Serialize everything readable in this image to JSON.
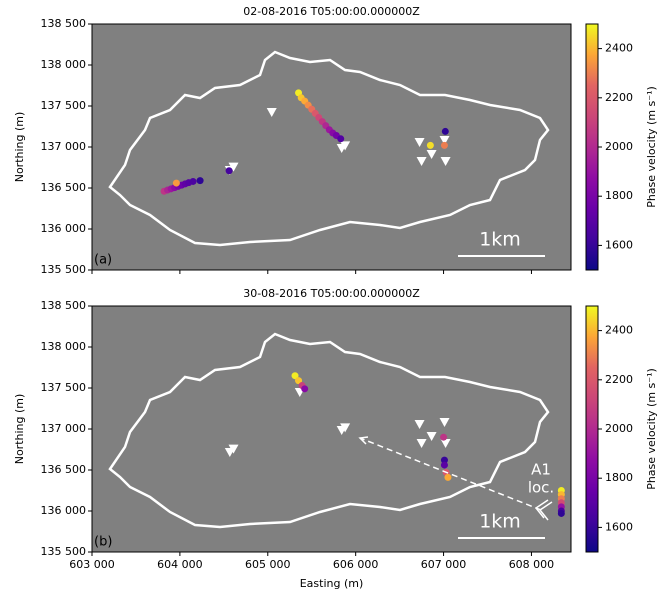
{
  "chart_data": [
    {
      "type": "scatter",
      "title": "02-08-2016 T05:00:00.000000Z",
      "panel_label": "(a)",
      "ylabel": "Northing (m)",
      "background": "#808080",
      "colormap": "plasma",
      "xlim": [
        603000,
        608450
      ],
      "ylim": [
        135500,
        138500
      ],
      "xticks": [
        603000,
        604000,
        605000,
        606000,
        607000,
        608000
      ],
      "xtick_labels": false,
      "yticks": [
        {
          "value": 135500,
          "label": "135 500"
        },
        {
          "value": 136000,
          "label": "136 000"
        },
        {
          "value": 136500,
          "label": "136 500"
        },
        {
          "value": 137000,
          "label": "137 000"
        },
        {
          "value": 137500,
          "label": "137 500"
        },
        {
          "value": 138000,
          "label": "138 000"
        },
        {
          "value": 138500,
          "label": "138 500"
        }
      ],
      "x": [
        603820,
        603860,
        603900,
        603940,
        603980,
        604020,
        604060,
        604100,
        604150,
        604230,
        604560,
        603960,
        605350,
        605380,
        605420,
        605460,
        605500,
        605540,
        605580,
        605620,
        605660,
        605700,
        605740,
        605780,
        605830,
        606850,
        607020,
        607010
      ],
      "y": [
        136460,
        136475,
        136490,
        136505,
        136520,
        136535,
        136550,
        136565,
        136580,
        136590,
        136710,
        136560,
        137660,
        137600,
        137560,
        137510,
        137460,
        137410,
        137360,
        137310,
        137260,
        137210,
        137170,
        137140,
        137100,
        137020,
        137190,
        137020
      ],
      "values": [
        2050,
        1980,
        1920,
        1860,
        1800,
        1760,
        1720,
        1690,
        1660,
        1580,
        1640,
        2350,
        2480,
        2420,
        2380,
        2330,
        2270,
        2200,
        2130,
        2060,
        1990,
        1920,
        1850,
        1780,
        1680,
        2460,
        1580,
        2300
      ],
      "stations": {
        "x": [
          604568,
          604610,
          605045,
          605841,
          605880,
          606727,
          607011,
          606750,
          606864,
          607023
        ],
        "y": [
          136720,
          136760,
          137427,
          136988,
          137020,
          137061,
          137085,
          136829,
          136915,
          136829
        ]
      },
      "clim": [
        1500,
        2500
      ],
      "cticks": [
        1600,
        1800,
        2000,
        2200,
        2400
      ],
      "clabel": "Phase velocity (m s⁻¹)",
      "scalebar_label": "1km"
    },
    {
      "type": "scatter",
      "title": "30-08-2016 T05:00:00.000000Z",
      "panel_label": "(b)",
      "ylabel": "Northing (m)",
      "xlabel": "Easting (m)",
      "background": "#808080",
      "colormap": "plasma",
      "xlim": [
        603000,
        608450
      ],
      "ylim": [
        135500,
        138500
      ],
      "xticks": [
        {
          "value": 603000,
          "label": "603 000"
        },
        {
          "value": 604000,
          "label": "604 000"
        },
        {
          "value": 605000,
          "label": "605 000"
        },
        {
          "value": 606000,
          "label": "606 000"
        },
        {
          "value": 607000,
          "label": "607 000"
        },
        {
          "value": 608000,
          "label": "608 000"
        }
      ],
      "xtick_labels": true,
      "yticks": [
        {
          "value": 135500,
          "label": "135 500"
        },
        {
          "value": 136000,
          "label": "136 000"
        },
        {
          "value": 136500,
          "label": "136 500"
        },
        {
          "value": 137000,
          "label": "137 000"
        },
        {
          "value": 137500,
          "label": "137 500"
        },
        {
          "value": 138000,
          "label": "138 000"
        },
        {
          "value": 138500,
          "label": "138 500"
        }
      ],
      "x": [
        605310,
        605350,
        605390,
        605420,
        607010,
        607010,
        607030,
        607050,
        607000,
        608340,
        608340,
        608340,
        608340,
        608340,
        608340,
        608340
      ],
      "y": [
        137650,
        137590,
        137530,
        137490,
        136620,
        136560,
        136470,
        136410,
        136900,
        136250,
        136200,
        136150,
        136100,
        136050,
        136000,
        135970
      ],
      "values": [
        2480,
        2420,
        2100,
        1850,
        1600,
        1700,
        2200,
        2380,
        2050,
        2480,
        2400,
        2300,
        2150,
        1900,
        1650,
        1580
      ],
      "stations": {
        "x": [
          604568,
          604610,
          605364,
          605841,
          605880,
          606727,
          607011,
          606750,
          606864,
          607023
        ],
        "y": [
          136720,
          136760,
          137451,
          136988,
          137020,
          137061,
          137085,
          136829,
          136915,
          136829
        ]
      },
      "clim": [
        1500,
        2500
      ],
      "cticks": [
        1600,
        1800,
        2000,
        2200,
        2400
      ],
      "clabel": "Phase velocity (m s⁻¹)",
      "scalebar_label": "1km",
      "annotation": [
        "A1",
        "loc."
      ]
    }
  ]
}
